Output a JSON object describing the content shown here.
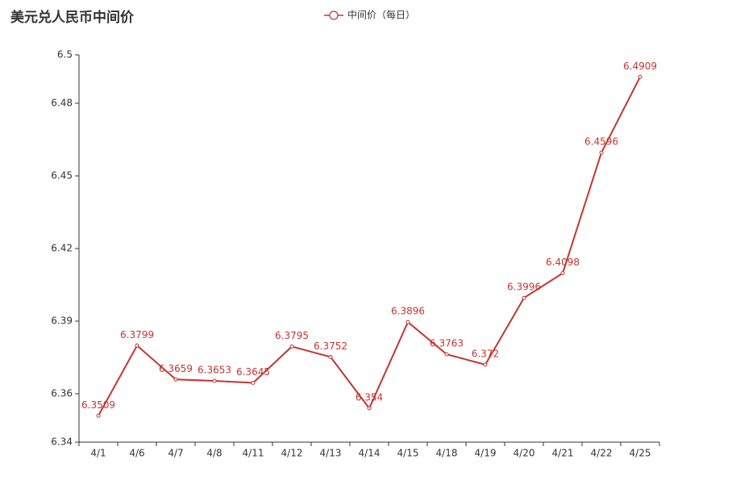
{
  "chart_data": {
    "type": "line",
    "title": "美元兑人民币中间价",
    "categories": [
      "4/1",
      "4/6",
      "4/7",
      "4/8",
      "4/11",
      "4/12",
      "4/13",
      "4/14",
      "4/15",
      "4/18",
      "4/19",
      "4/20",
      "4/21",
      "4/22",
      "4/25"
    ],
    "series": [
      {
        "name": "中间价（每日）",
        "color": "#c23531",
        "values": [
          6.3509,
          6.3799,
          6.3659,
          6.3653,
          6.3645,
          6.3795,
          6.3752,
          6.354,
          6.3896,
          6.3763,
          6.372,
          6.3996,
          6.4098,
          6.4596,
          6.4909
        ]
      }
    ],
    "ylim": [
      6.34,
      6.5
    ],
    "yticks": [
      6.34,
      6.36,
      6.39,
      6.42,
      6.45,
      6.48,
      6.5
    ],
    "grid": false,
    "legend": "top"
  }
}
